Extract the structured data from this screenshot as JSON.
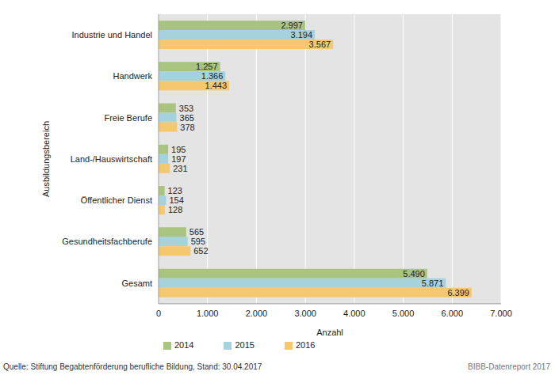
{
  "chart_data": {
    "type": "bar",
    "orientation": "horizontal",
    "categories": [
      "Industrie und Handel",
      "Handwerk",
      "Freie Berufe",
      "Land-/Hauswirtschaft",
      "Öffentlicher Dienst",
      "Gesundheitsfachberufe",
      "Gesamt"
    ],
    "series": [
      {
        "name": "2014",
        "color": "#a9c47f",
        "values": [
          2997,
          1257,
          353,
          195,
          123,
          565,
          5490
        ],
        "value_labels": [
          "2.997",
          "1.257",
          "353",
          "195",
          "123",
          "565",
          "5.490"
        ]
      },
      {
        "name": "2015",
        "color": "#a6d2de",
        "values": [
          3194,
          1366,
          365,
          197,
          154,
          595,
          5871
        ],
        "value_labels": [
          "3.194",
          "1.366",
          "365",
          "197",
          "154",
          "595",
          "5.871"
        ]
      },
      {
        "name": "2016",
        "color": "#f5c86f",
        "values": [
          3567,
          1443,
          378,
          231,
          128,
          652,
          6399
        ],
        "value_labels": [
          "3.567",
          "1.443",
          "378",
          "231",
          "128",
          "652",
          "6.399"
        ]
      }
    ],
    "xlim": [
      0,
      7000
    ],
    "xticks": [
      0,
      {
        "value": 1000,
        "label": "1.000"
      },
      {
        "value": 2000,
        "label": "2.000"
      },
      {
        "value": 3000,
        "label": "3.000"
      },
      {
        "value": 4000,
        "label": "4.000"
      },
      {
        "value": 5000,
        "label": "5.000"
      },
      {
        "value": 6000,
        "label": "6.000"
      },
      {
        "value": 7000,
        "label": "7.000"
      }
    ],
    "x_label": "Anzahl",
    "y_label": "Ausbildungsbereich",
    "grid": true,
    "legend": "bottom",
    "data_labels": true,
    "annotations": [
      "Quelle: Stiftung Begabtenförderung berufliche Bildung, Stand: 30.04.2017",
      "BIBB-Datenreport 2017"
    ]
  }
}
